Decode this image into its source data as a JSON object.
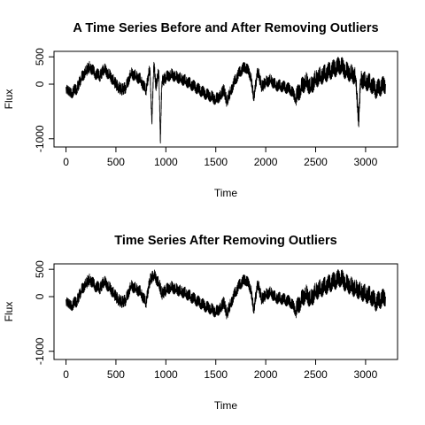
{
  "chart_data": [
    {
      "type": "line",
      "title": "A Time Series Before and After Removing Outliers",
      "xlabel": "Time",
      "ylabel": "Flux",
      "xlim": [
        -120,
        3320
      ],
      "ylim": [
        -1150,
        600
      ],
      "xticks": [
        0,
        500,
        1000,
        1500,
        2000,
        2500,
        3000
      ],
      "yticks": [
        500,
        0,
        -1000
      ],
      "grid": false,
      "series": [
        {
          "values_note_x": "time",
          "x": [
            0,
            60,
            110,
            150,
            200,
            240,
            290,
            340,
            380,
            430,
            480,
            520,
            560,
            600,
            650,
            700,
            750,
            800,
            840,
            860,
            880,
            900,
            930,
            945,
            960,
            1000,
            1050,
            1100,
            1150,
            1200,
            1250,
            1300,
            1350,
            1400,
            1450,
            1500,
            1550,
            1580,
            1610,
            1650,
            1700,
            1750,
            1800,
            1850,
            1880,
            1920,
            1960,
            2000,
            2050,
            2100,
            2150,
            2200,
            2250,
            2300,
            2350,
            2400,
            2450,
            2500,
            2550,
            2600,
            2650,
            2700,
            2750,
            2800,
            2850,
            2900,
            2930,
            2950,
            3000,
            3050,
            3100,
            3150,
            3200
          ],
          "y": [
            -50,
            -150,
            -80,
            100,
            250,
            320,
            200,
            150,
            280,
            180,
            60,
            -50,
            -100,
            -60,
            200,
            150,
            80,
            -120,
            300,
            -700,
            400,
            -50,
            250,
            -1050,
            50,
            120,
            180,
            140,
            100,
            60,
            0,
            -60,
            -120,
            -180,
            -220,
            -280,
            -200,
            -100,
            -320,
            -120,
            100,
            250,
            320,
            150,
            -250,
            250,
            -50,
            40,
            80,
            -20,
            -30,
            -60,
            -100,
            -250,
            -80,
            60,
            -50,
            100,
            150,
            200,
            250,
            300,
            350,
            250,
            200,
            150,
            -700,
            100,
            50,
            20,
            -100,
            -50,
            0
          ]
        }
      ]
    },
    {
      "type": "line",
      "title": "Time Series After Removing Outliers",
      "xlabel": "Time",
      "ylabel": "Flux",
      "xlim": [
        -120,
        3320
      ],
      "ylim": [
        -1150,
        600
      ],
      "xticks": [
        0,
        500,
        1000,
        1500,
        2000,
        2500,
        3000
      ],
      "yticks": [
        500,
        0,
        -1000
      ],
      "grid": false,
      "series": [
        {
          "x": [
            0,
            60,
            110,
            150,
            200,
            240,
            290,
            340,
            380,
            430,
            480,
            520,
            560,
            600,
            650,
            700,
            750,
            800,
            840,
            880,
            930,
            960,
            1000,
            1050,
            1100,
            1150,
            1200,
            1250,
            1300,
            1350,
            1400,
            1450,
            1500,
            1550,
            1580,
            1610,
            1650,
            1700,
            1750,
            1800,
            1850,
            1880,
            1920,
            1960,
            2000,
            2050,
            2100,
            2150,
            2200,
            2250,
            2300,
            2350,
            2400,
            2450,
            2500,
            2550,
            2600,
            2650,
            2700,
            2750,
            2800,
            2850,
            2900,
            2950,
            3000,
            3050,
            3100,
            3150,
            3200
          ],
          "y": [
            -50,
            -150,
            -80,
            100,
            250,
            320,
            200,
            150,
            280,
            180,
            60,
            -50,
            -100,
            -60,
            200,
            150,
            80,
            -120,
            300,
            400,
            250,
            50,
            120,
            180,
            140,
            100,
            60,
            0,
            -60,
            -120,
            -180,
            -220,
            -280,
            -200,
            -100,
            -320,
            -120,
            100,
            250,
            320,
            150,
            -250,
            250,
            -50,
            40,
            80,
            -20,
            -30,
            -60,
            -100,
            -250,
            -80,
            60,
            -50,
            100,
            150,
            200,
            250,
            300,
            350,
            250,
            200,
            150,
            100,
            50,
            20,
            -100,
            -50,
            0
          ]
        }
      ]
    }
  ]
}
